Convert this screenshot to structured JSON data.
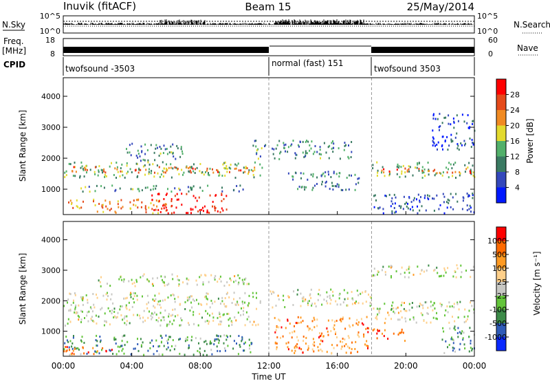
{
  "header": {
    "station": "Inuvik (fitACF)",
    "beam": "Beam 15",
    "date": "25/May/2014"
  },
  "ancillary": {
    "nsky_label": "N.Sky",
    "nsearch_label": "N.Search",
    "nsky_ticks": [
      "10^5",
      "10^0"
    ],
    "nsearch_ticks": [
      "10^5",
      "10^0"
    ],
    "freq_label": "Freq.",
    "freq_unit": "[MHz]",
    "freq_ticks": [
      "18",
      "8"
    ],
    "nave_label": "Nave",
    "nave_ticks": [
      "60",
      "0"
    ],
    "cpid_label": "CPID",
    "cpid_segments": [
      {
        "label": "twofsound -3503",
        "start_hour": 0,
        "end_hour": 12
      },
      {
        "label": "normal (fast) 151",
        "start_hour": 12,
        "end_hour": 18
      },
      {
        "label": "twofsound 3503",
        "start_hour": 18,
        "end_hour": 24
      }
    ]
  },
  "time_axis": {
    "title": "Time UT",
    "ticks": [
      "00:00",
      "04:00",
      "08:00",
      "12:00",
      "16:00",
      "20:00",
      "00:00"
    ]
  },
  "chart_data": [
    {
      "type": "heatmap",
      "quantity": "Power",
      "colorbar_label": "Power [dB]",
      "colorbar_ticks": [
        "28",
        "24",
        "20",
        "16",
        "12",
        "8",
        "4"
      ],
      "colorbar_colors": [
        "#0018ff",
        "#3448bb",
        "#3a7a62",
        "#52b06a",
        "#e3da2e",
        "#f08a22",
        "#e54a1a",
        "#ff0000"
      ],
      "ylabel": "Slant Range [km]",
      "yticks": [
        1000,
        2000,
        3000,
        4000
      ],
      "ylim": [
        180,
        4600
      ],
      "xlim": [
        0,
        24
      ],
      "bands": [
        {
          "t0": 0,
          "t1": 11.6,
          "r0": 1400,
          "r1": 1900,
          "level": 0.45
        },
        {
          "t0": 0,
          "t1": 11.6,
          "r0": 1550,
          "r1": 1750,
          "level": 0.75
        },
        {
          "t0": 0,
          "t1": 6,
          "r0": 250,
          "r1": 700,
          "level": 0.7
        },
        {
          "t0": 5,
          "t1": 9.5,
          "r0": 250,
          "r1": 900,
          "level": 0.95
        },
        {
          "t0": 1,
          "t1": 11,
          "r0": 950,
          "r1": 1150,
          "level": 0.35
        },
        {
          "t0": 3.5,
          "t1": 7,
          "r0": 1900,
          "r1": 2500,
          "level": 0.35
        },
        {
          "t0": 11,
          "t1": 17,
          "r0": 2000,
          "r1": 2600,
          "level": 0.35
        },
        {
          "t0": 13,
          "t1": 17.5,
          "r0": 1000,
          "r1": 1600,
          "level": 0.3
        },
        {
          "t0": 18,
          "t1": 24,
          "r0": 1400,
          "r1": 1900,
          "level": 0.45
        },
        {
          "t0": 18,
          "t1": 24,
          "r0": 1550,
          "r1": 1700,
          "level": 0.8
        },
        {
          "t0": 18,
          "t1": 24,
          "r0": 250,
          "r1": 900,
          "level": 0.2
        },
        {
          "t0": 21.5,
          "t1": 24,
          "r0": 2300,
          "r1": 3500,
          "level": 0.15
        }
      ]
    },
    {
      "type": "heatmap",
      "quantity": "Velocity",
      "colorbar_label": "Velocity [m s⁻¹]",
      "colorbar_ticks": [
        "1000",
        "500",
        "100",
        "25",
        "-25",
        "-100",
        "-500",
        "-1000"
      ],
      "colorbar_colors": [
        "#0a2aff",
        "#2f5bb8",
        "#3c8b48",
        "#63c53a",
        "#c8c8c4",
        "#ffd08a",
        "#ff9a22",
        "#ff6a00",
        "#ff0000"
      ],
      "ylabel": "Slant Range [km]",
      "yticks": [
        1000,
        2000,
        3000,
        4000
      ],
      "ylim": [
        180,
        4600
      ],
      "xlim": [
        0,
        24
      ],
      "bands": [
        {
          "t0": 0,
          "t1": 11.6,
          "r0": 1200,
          "r1": 2300,
          "level": 0.5
        },
        {
          "t0": 2,
          "t1": 11,
          "r0": 2500,
          "r1": 2900,
          "level": 0.5
        },
        {
          "t0": 0,
          "t1": 11,
          "r0": 250,
          "r1": 900,
          "level": 0.3
        },
        {
          "t0": 0,
          "t1": 3,
          "r0": 250,
          "r1": 550,
          "level": 0.8
        },
        {
          "t0": 12,
          "t1": 18,
          "r0": 1800,
          "r1": 2400,
          "level": 0.5
        },
        {
          "t0": 12.3,
          "t1": 17.8,
          "r0": 300,
          "r1": 1500,
          "level": 0.75
        },
        {
          "t0": 18,
          "t1": 24,
          "r0": 1300,
          "r1": 2000,
          "level": 0.5
        },
        {
          "t0": 18,
          "t1": 24,
          "r0": 2800,
          "r1": 3200,
          "level": 0.5
        },
        {
          "t0": 18,
          "t1": 20,
          "r0": 700,
          "r1": 1100,
          "level": 0.8
        },
        {
          "t0": 22,
          "t1": 24,
          "r0": 300,
          "r1": 1200,
          "level": 0.3
        }
      ]
    }
  ]
}
